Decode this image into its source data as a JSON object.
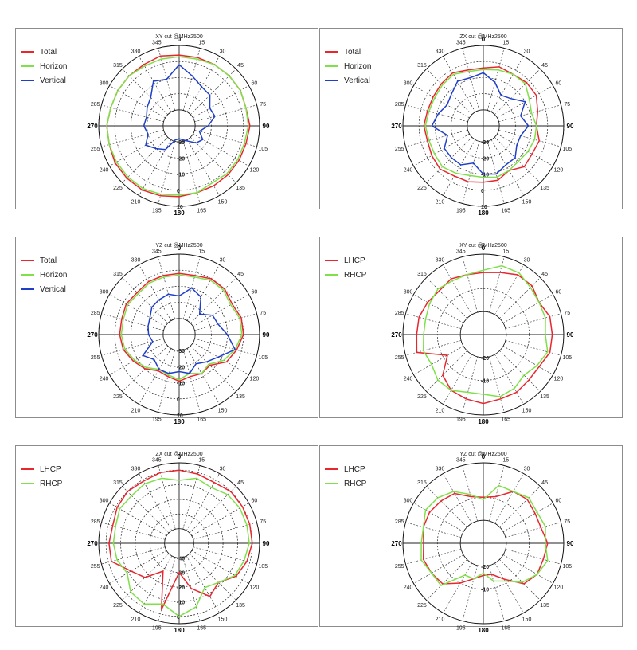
{
  "chart_data": [
    {
      "type": "polar-line",
      "title": "XY cut @MHz2500",
      "angle_labels": [
        "0",
        "15",
        "30",
        "45",
        "60",
        "75",
        "90",
        "105",
        "120",
        "135",
        "150",
        "165",
        "180",
        "195",
        "210",
        "225",
        "240",
        "255",
        "270",
        "285",
        "300",
        "315",
        "330",
        "345"
      ],
      "radial_labels": [
        "-30",
        "-20",
        "-10",
        "0",
        "10"
      ],
      "rlim": [
        -40,
        10
      ],
      "grid": true,
      "legend_position": "top-left",
      "angles": [
        0,
        15,
        30,
        45,
        60,
        75,
        90,
        105,
        120,
        135,
        150,
        165,
        180,
        195,
        210,
        225,
        240,
        255,
        270,
        285,
        300,
        315,
        330,
        345
      ],
      "series": [
        {
          "name": "Total",
          "color": "#e8262e",
          "values": [
            4,
            4,
            4,
            4,
            4,
            3,
            4,
            3,
            3,
            3,
            3,
            3,
            4,
            5,
            6,
            6,
            6,
            5,
            5,
            4,
            4,
            4,
            4,
            5
          ]
        },
        {
          "name": "Horizon",
          "color": "#7fe04a",
          "values": [
            3,
            3,
            4,
            4,
            4,
            3,
            3,
            2,
            2,
            2,
            1,
            3,
            3,
            4,
            5,
            5,
            5,
            5,
            5,
            4,
            4,
            4,
            3,
            3
          ]
        },
        {
          "name": "Vertical",
          "color": "#1f3fc9",
          "values": [
            -2,
            -8,
            -12,
            -13,
            -18,
            -17,
            -22,
            -27,
            -23,
            -25,
            -29,
            -31,
            -32,
            -31,
            -23,
            -20,
            -16,
            -20,
            -18,
            -19,
            -17,
            -15,
            -8,
            -10
          ]
        }
      ]
    },
    {
      "type": "polar-line",
      "title": "ZX cut @MHz2500",
      "angle_labels": [
        "0",
        "15",
        "30",
        "45",
        "60",
        "75",
        "90",
        "105",
        "120",
        "135",
        "150",
        "165",
        "180",
        "195",
        "210",
        "225",
        "240",
        "255",
        "270",
        "285",
        "300",
        "315",
        "330",
        "345"
      ],
      "radial_labels": [
        "-30",
        "-20",
        "-10",
        "0",
        "10"
      ],
      "rlim": [
        -40,
        10
      ],
      "grid": true,
      "legend_position": "top-left",
      "angles": [
        0,
        15,
        30,
        45,
        60,
        75,
        90,
        105,
        120,
        135,
        150,
        165,
        180,
        195,
        210,
        225,
        240,
        255,
        270,
        285,
        300,
        315,
        330,
        345
      ],
      "series": [
        {
          "name": "Total",
          "color": "#e8262e",
          "values": [
            -4,
            -2,
            -3,
            -2,
            -2,
            -5,
            -7,
            -4,
            -5,
            -4,
            -8,
            -5,
            -5,
            -4,
            -4,
            -2,
            -3,
            -4,
            -3,
            -4,
            -4,
            -3,
            -2,
            -4
          ]
        },
        {
          "name": "Horizon",
          "color": "#7fe04a",
          "values": [
            -5,
            -4,
            -3,
            -3,
            -7,
            -9,
            -7,
            -7,
            -8,
            -9,
            -8,
            -7,
            -8,
            -8,
            -6,
            -4,
            -5,
            -5,
            -4,
            -5,
            -5,
            -4,
            -3,
            -5
          ]
        },
        {
          "name": "Vertical",
          "color": "#1f3fc9",
          "values": [
            -7,
            -12,
            -18,
            -16,
            -10,
            -16,
            -12,
            -16,
            -16,
            -12,
            -12,
            -9,
            -10,
            -16,
            -12,
            -12,
            -12,
            -17,
            -8,
            -11,
            -14,
            -12,
            -8,
            -9
          ]
        }
      ]
    },
    {
      "type": "polar-line",
      "title": "YZ cut @MHz2500",
      "angle_labels": [
        "0",
        "15",
        "30",
        "45",
        "60",
        "75",
        "90",
        "105",
        "120",
        "135",
        "150",
        "165",
        "180",
        "195",
        "210",
        "225",
        "240",
        "255",
        "270",
        "285",
        "300",
        "315",
        "330",
        "345"
      ],
      "radial_labels": [
        "-30",
        "-20",
        "-10",
        "0",
        "10"
      ],
      "rlim": [
        -40,
        10
      ],
      "grid": true,
      "legend_position": "top-left",
      "angles": [
        0,
        15,
        30,
        45,
        60,
        75,
        90,
        105,
        120,
        135,
        150,
        165,
        180,
        195,
        210,
        225,
        240,
        255,
        270,
        285,
        300,
        315,
        330,
        345
      ],
      "series": [
        {
          "name": "Total",
          "color": "#e8262e",
          "values": [
            -2,
            -2,
            0,
            0,
            -2,
            0,
            0,
            -3,
            -6,
            -13,
            -12,
            -13,
            -11,
            -13,
            -14,
            -10,
            -7,
            -4,
            -3,
            -3,
            -2,
            -3,
            -2,
            -2
          ]
        },
        {
          "name": "Horizon",
          "color": "#7fe04a",
          "values": [
            -3,
            -3,
            -1,
            -1,
            -3,
            -1,
            -1,
            -4,
            -8,
            -14,
            -12,
            -15,
            -12,
            -14,
            -15,
            -11,
            -8,
            -5,
            -4,
            -4,
            -3,
            -4,
            -3,
            -3
          ]
        },
        {
          "name": "Vertical",
          "color": "#1f3fc9",
          "values": [
            -16,
            -10,
            -13,
            -22,
            -16,
            -15,
            -10,
            -4,
            -12,
            -16,
            -19,
            -15,
            -17,
            -15,
            -15,
            -18,
            -14,
            -23,
            -21,
            -20,
            -19,
            -16,
            -15,
            -14
          ]
        }
      ]
    },
    {
      "type": "polar-line",
      "title": "XY cut @MHz2500",
      "angle_labels": [
        "0",
        "15",
        "30",
        "45",
        "60",
        "75",
        "90",
        "105",
        "120",
        "135",
        "150",
        "165",
        "180",
        "195",
        "210",
        "225",
        "240",
        "255",
        "270",
        "285",
        "300",
        "315",
        "330",
        "345"
      ],
      "radial_labels": [
        "-20",
        "-10"
      ],
      "rlim": [
        -30,
        5
      ],
      "grid": true,
      "legend_position": "top-left",
      "angles": [
        0,
        15,
        30,
        45,
        60,
        75,
        90,
        105,
        120,
        135,
        150,
        165,
        180,
        195,
        210,
        225,
        240,
        255,
        270,
        285,
        300,
        315,
        330,
        345
      ],
      "series": [
        {
          "name": "LHCP",
          "color": "#e8262e",
          "values": [
            -3,
            -2,
            0,
            0,
            -2,
            0,
            0,
            0,
            -2,
            -2,
            -1,
            -1,
            0,
            -1,
            -2,
            -5,
            -12,
            0,
            -1,
            -1,
            -2,
            -3,
            -2,
            -3
          ]
        },
        {
          "name": "RHCP",
          "color": "#7fe04a",
          "values": [
            -2,
            1,
            1,
            -1,
            -2,
            -2,
            -3,
            -1,
            -3,
            -5,
            -3,
            -2,
            -4,
            -4,
            -2,
            -2,
            -4,
            -3,
            -4,
            -4,
            -3,
            -2,
            -3,
            -3
          ]
        }
      ]
    },
    {
      "type": "polar-line",
      "title": "ZX cut @MHz2500",
      "angle_labels": [
        "0",
        "15",
        "30",
        "45",
        "60",
        "75",
        "90",
        "105",
        "120",
        "135",
        "150",
        "165",
        "180",
        "195",
        "210",
        "225",
        "240",
        "255",
        "270",
        "285",
        "300",
        "315",
        "330",
        "345"
      ],
      "radial_labels": [
        "-40",
        "-30",
        "-20",
        "-10",
        "0"
      ],
      "rlim": [
        -50,
        5
      ],
      "grid": true,
      "legend_position": "top-left",
      "angles": [
        0,
        15,
        30,
        45,
        60,
        75,
        90,
        105,
        120,
        135,
        150,
        165,
        180,
        195,
        210,
        225,
        240,
        255,
        270,
        285,
        300,
        315,
        330,
        345
      ],
      "series": [
        {
          "name": "LHCP",
          "color": "#e8262e",
          "values": [
            0,
            -1,
            -2,
            0,
            0,
            0,
            0,
            -2,
            -5,
            -12,
            -8,
            -18,
            -30,
            -3,
            -28,
            -17,
            -12,
            -2,
            -2,
            -3,
            -1,
            0,
            -1,
            0
          ]
        },
        {
          "name": "RHCP",
          "color": "#7fe04a",
          "values": [
            -7,
            -4,
            -6,
            -3,
            -2,
            -2,
            -2,
            -4,
            -6,
            -12,
            -15,
            -5,
            0,
            -7,
            -2,
            -3,
            -9,
            -6,
            -5,
            -5,
            -3,
            -4,
            -3,
            -4
          ]
        }
      ]
    },
    {
      "type": "polar-line",
      "title": "YZ cut @MHz2500",
      "angle_labels": [
        "0",
        "15",
        "30",
        "45",
        "60",
        "75",
        "90",
        "105",
        "120",
        "135",
        "150",
        "165",
        "180",
        "195",
        "210",
        "225",
        "240",
        "255",
        "270",
        "285",
        "300",
        "315",
        "330",
        "345"
      ],
      "radial_labels": [
        "-20",
        "-10"
      ],
      "rlim": [
        -30,
        5
      ],
      "grid": true,
      "legend_position": "top-left",
      "angles": [
        0,
        15,
        30,
        45,
        60,
        75,
        90,
        105,
        120,
        135,
        150,
        165,
        180,
        195,
        210,
        225,
        240,
        255,
        270,
        285,
        300,
        315,
        330,
        345
      ],
      "series": [
        {
          "name": "LHCP",
          "color": "#e8262e",
          "values": [
            -10,
            -9,
            -4,
            -3,
            -4,
            -4,
            -2,
            -3,
            -3,
            -5,
            -12,
            -16,
            -16,
            -14,
            -10,
            -5,
            -4,
            -3,
            -4,
            -3,
            -3,
            -4,
            -5,
            -9
          ]
        },
        {
          "name": "RHCP",
          "color": "#7fe04a",
          "values": [
            -11,
            -4,
            -4,
            -2,
            -3,
            -2,
            -3,
            -1,
            -3,
            -6,
            -11,
            -13,
            -17,
            -14,
            -14,
            -4,
            -4,
            -2,
            -3,
            -3,
            -1,
            -2,
            -4,
            -8
          ]
        }
      ]
    }
  ]
}
